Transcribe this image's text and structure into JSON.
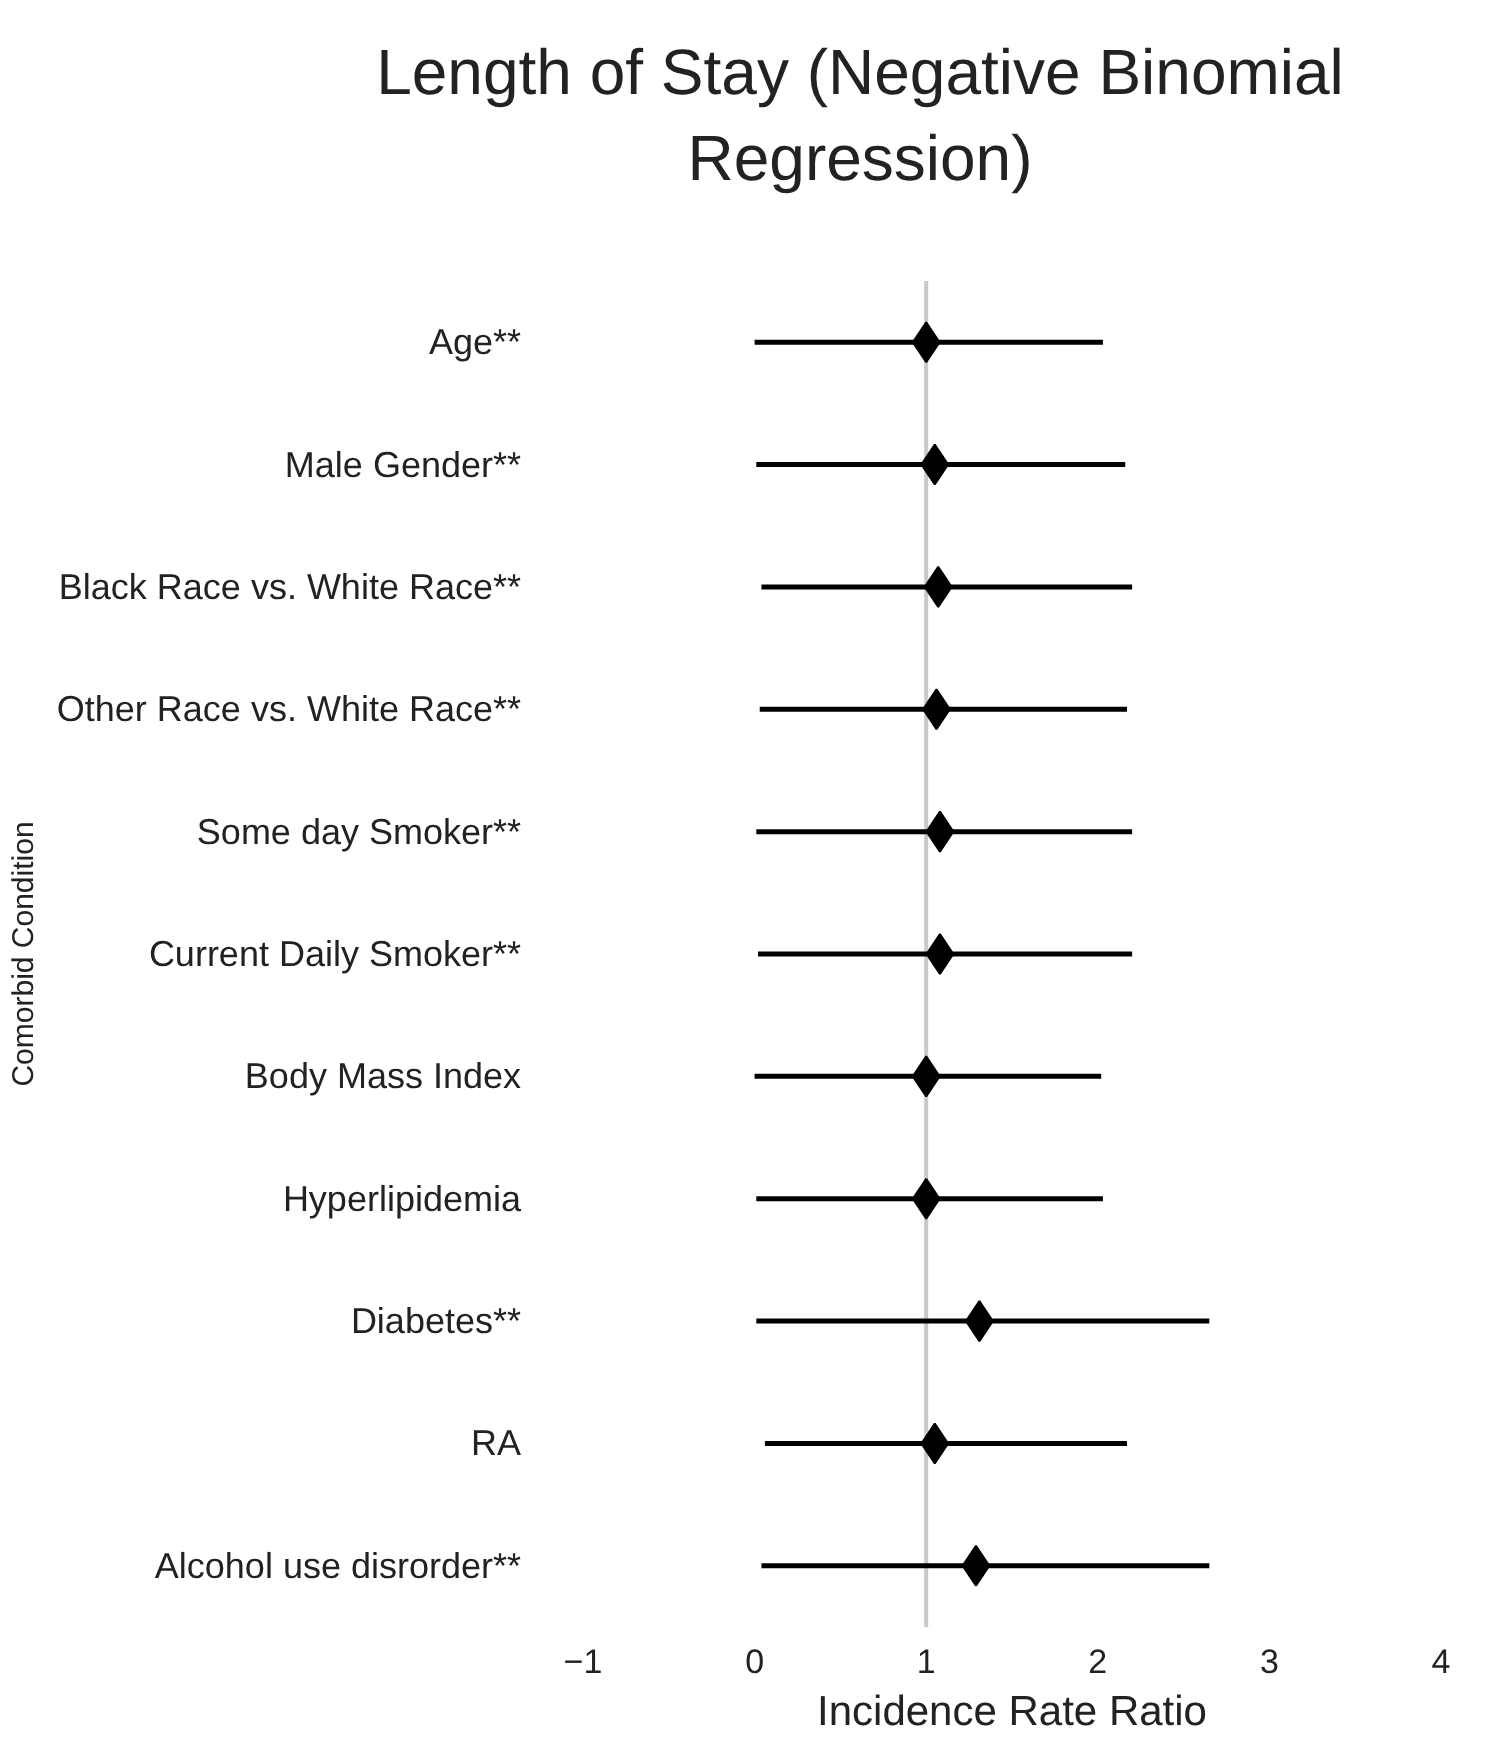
{
  "chart_data": {
    "type": "scatter",
    "title": "Length of Stay (Negative Binomial Regression)",
    "xlabel": "Incidence Rate Ratio",
    "ylabel": "Comorbid Condition",
    "orientation": "horizontal",
    "categories": [
      "Age**",
      "Male Gender**",
      "Black Race vs. White Race**",
      "Other Race vs. White Race**",
      "Some day Smoker**",
      "Current Daily Smoker**",
      "Body Mass Index",
      "Hyperlipidemia",
      "Diabetes**",
      "RA",
      "Alcohol use disrorder**"
    ],
    "series": [
      {
        "color": "#000000",
        "values": [
          1.0,
          1.05,
          1.07,
          1.06,
          1.08,
          1.08,
          1.0,
          1.0,
          1.31,
          1.05,
          1.29
        ],
        "errors": [
          [
            0.0,
            2.03
          ],
          [
            0.01,
            2.16
          ],
          [
            0.04,
            2.2
          ],
          [
            0.03,
            2.17
          ],
          [
            0.01,
            2.2
          ],
          [
            0.02,
            2.2
          ],
          [
            0.0,
            2.02
          ],
          [
            0.01,
            2.03
          ],
          [
            0.01,
            2.65
          ],
          [
            0.06,
            2.17
          ],
          [
            0.04,
            2.65
          ]
        ]
      }
    ],
    "xlim": [
      -1,
      4
    ],
    "xticks": [
      -1,
      0,
      1,
      2,
      3,
      4
    ],
    "ref_lines": [
      {
        "axis": "x",
        "value": 1,
        "color": "#c8c8c8"
      }
    ],
    "marker": "diamond",
    "grid": false
  }
}
